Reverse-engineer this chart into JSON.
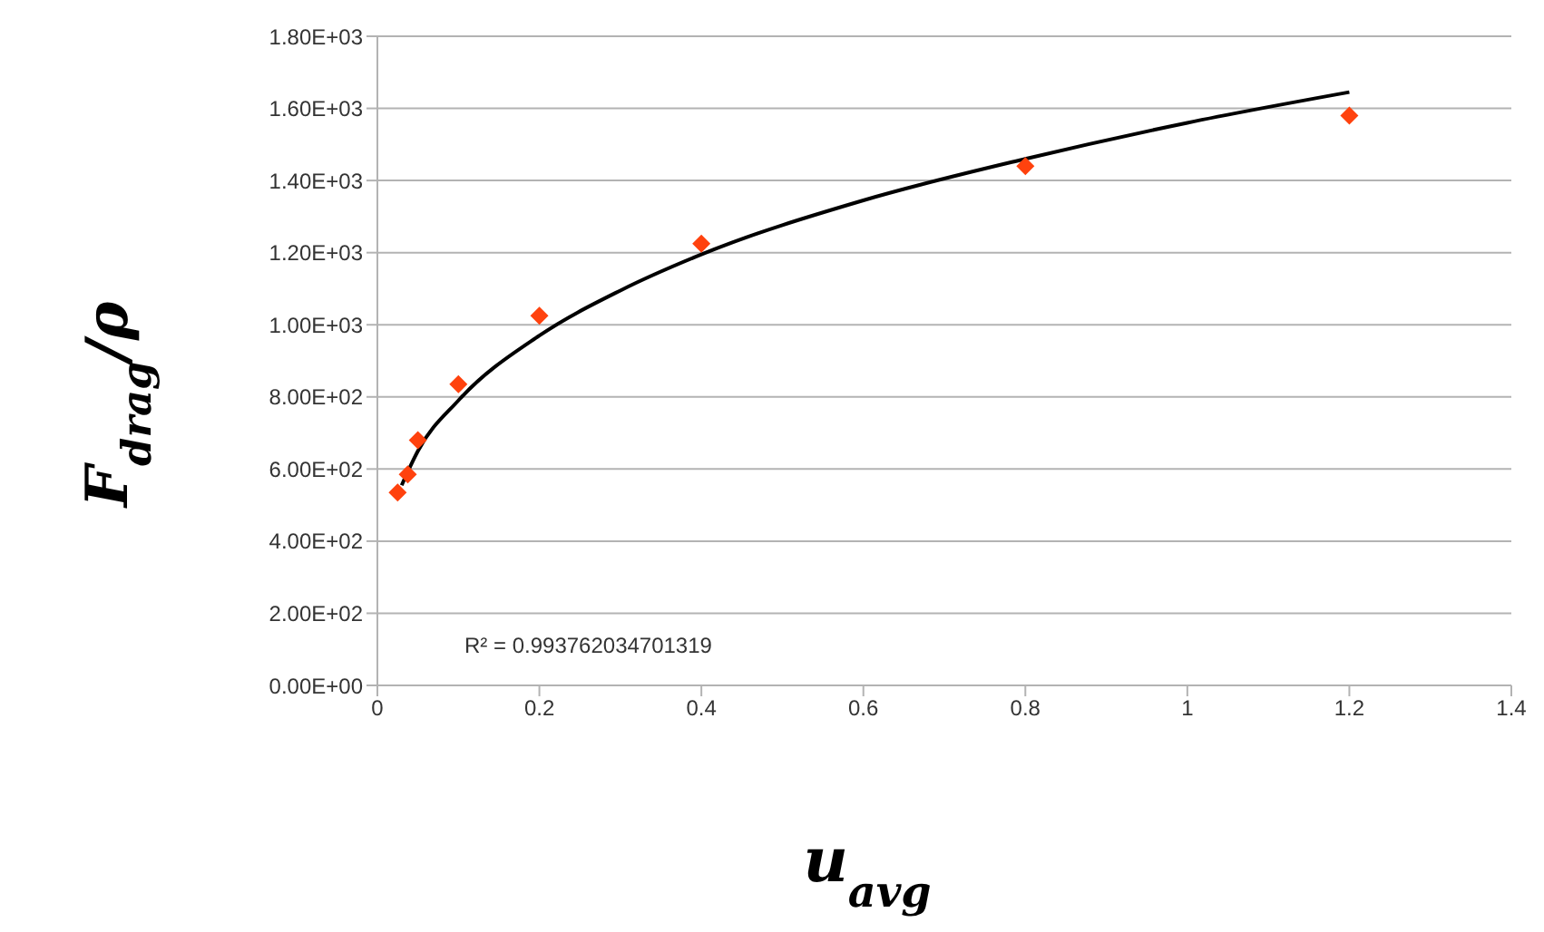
{
  "chart_data": {
    "type": "scatter",
    "xlabel": "u$_{avg}$",
    "ylabel": "F$_{drag}$/ρ",
    "annotations": [
      "R² = 0.993762034701319"
    ],
    "series": [
      {
        "color": "#ff420e",
        "marker": "diamond",
        "x": [
          0.025,
          0.0375,
          0.05,
          0.1,
          0.2,
          0.4,
          0.8,
          1.2
        ],
        "values": [
          535,
          585,
          680,
          835,
          1025,
          1225,
          1440,
          1580
        ]
      },
      {
        "type": "line",
        "color": "#000000",
        "marker": "none",
        "line_style": "solid",
        "x": [
          0.03,
          0.05,
          0.1,
          0.2,
          0.3,
          0.4,
          0.6,
          0.8,
          1.0,
          1.2
        ],
        "values": [
          555,
          650,
          790,
          970,
          1095,
          1195,
          1345,
          1460,
          1560,
          1645
        ]
      }
    ],
    "xlim": [
      0,
      1.4
    ],
    "xticks": [
      0,
      0.2,
      0.4,
      0.6,
      0.8,
      1,
      1.2,
      1.4
    ],
    "ylim": [
      0,
      1800
    ],
    "yticks": [
      {
        "value": 0,
        "label": "0.00E+00"
      },
      {
        "value": 200,
        "label": "2.00E+02"
      },
      {
        "value": 400,
        "label": "4.00E+02"
      },
      {
        "value": 600,
        "label": "6.00E+02"
      },
      {
        "value": 800,
        "label": "8.00E+02"
      },
      {
        "value": 1000,
        "label": "1.00E+03"
      },
      {
        "value": 1200,
        "label": "1.20E+03"
      },
      {
        "value": 1400,
        "label": "1.40E+03"
      },
      {
        "value": 1600,
        "label": "1.60E+03"
      },
      {
        "value": 1800,
        "label": "1.80E+03"
      }
    ],
    "grid": "y"
  }
}
